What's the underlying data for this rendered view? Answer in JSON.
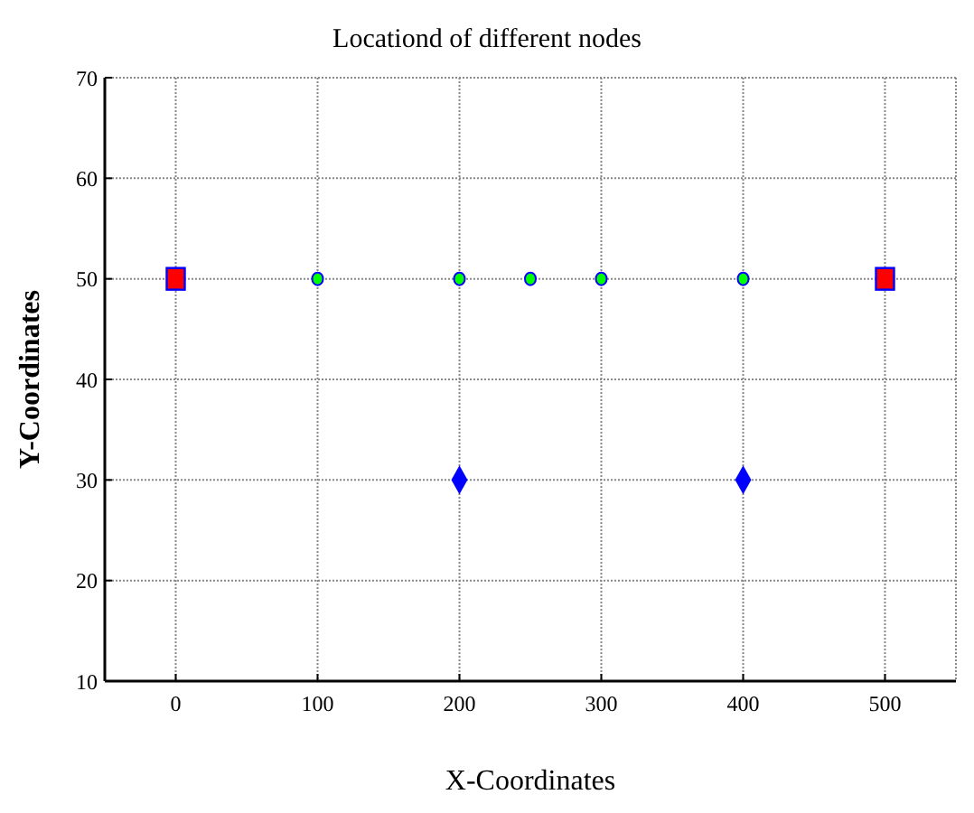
{
  "chart_data": {
    "type": "scatter",
    "title": "Locationd of different nodes",
    "xlabel": "X-Coordinates",
    "ylabel": "Y-Coordinates",
    "series": [
      {
        "color": "#ff0000",
        "marker": "square",
        "x": [
          0,
          500
        ],
        "values": [
          50,
          50
        ]
      },
      {
        "color": "#00ff00",
        "marker": "circle",
        "x": [
          100,
          200,
          250,
          300,
          400
        ],
        "values": [
          50,
          50,
          50,
          50,
          50
        ]
      },
      {
        "color": "#0000ff",
        "marker": "diamond",
        "x": [
          200,
          400
        ],
        "values": [
          30,
          30
        ]
      }
    ],
    "xlim": [
      -50,
      550
    ],
    "xticks": [
      0,
      100,
      200,
      300,
      400,
      500
    ],
    "ylim": [
      10,
      70
    ],
    "yticks": [
      10,
      20,
      30,
      40,
      50,
      60,
      70
    ],
    "grid": true,
    "legend": false
  }
}
